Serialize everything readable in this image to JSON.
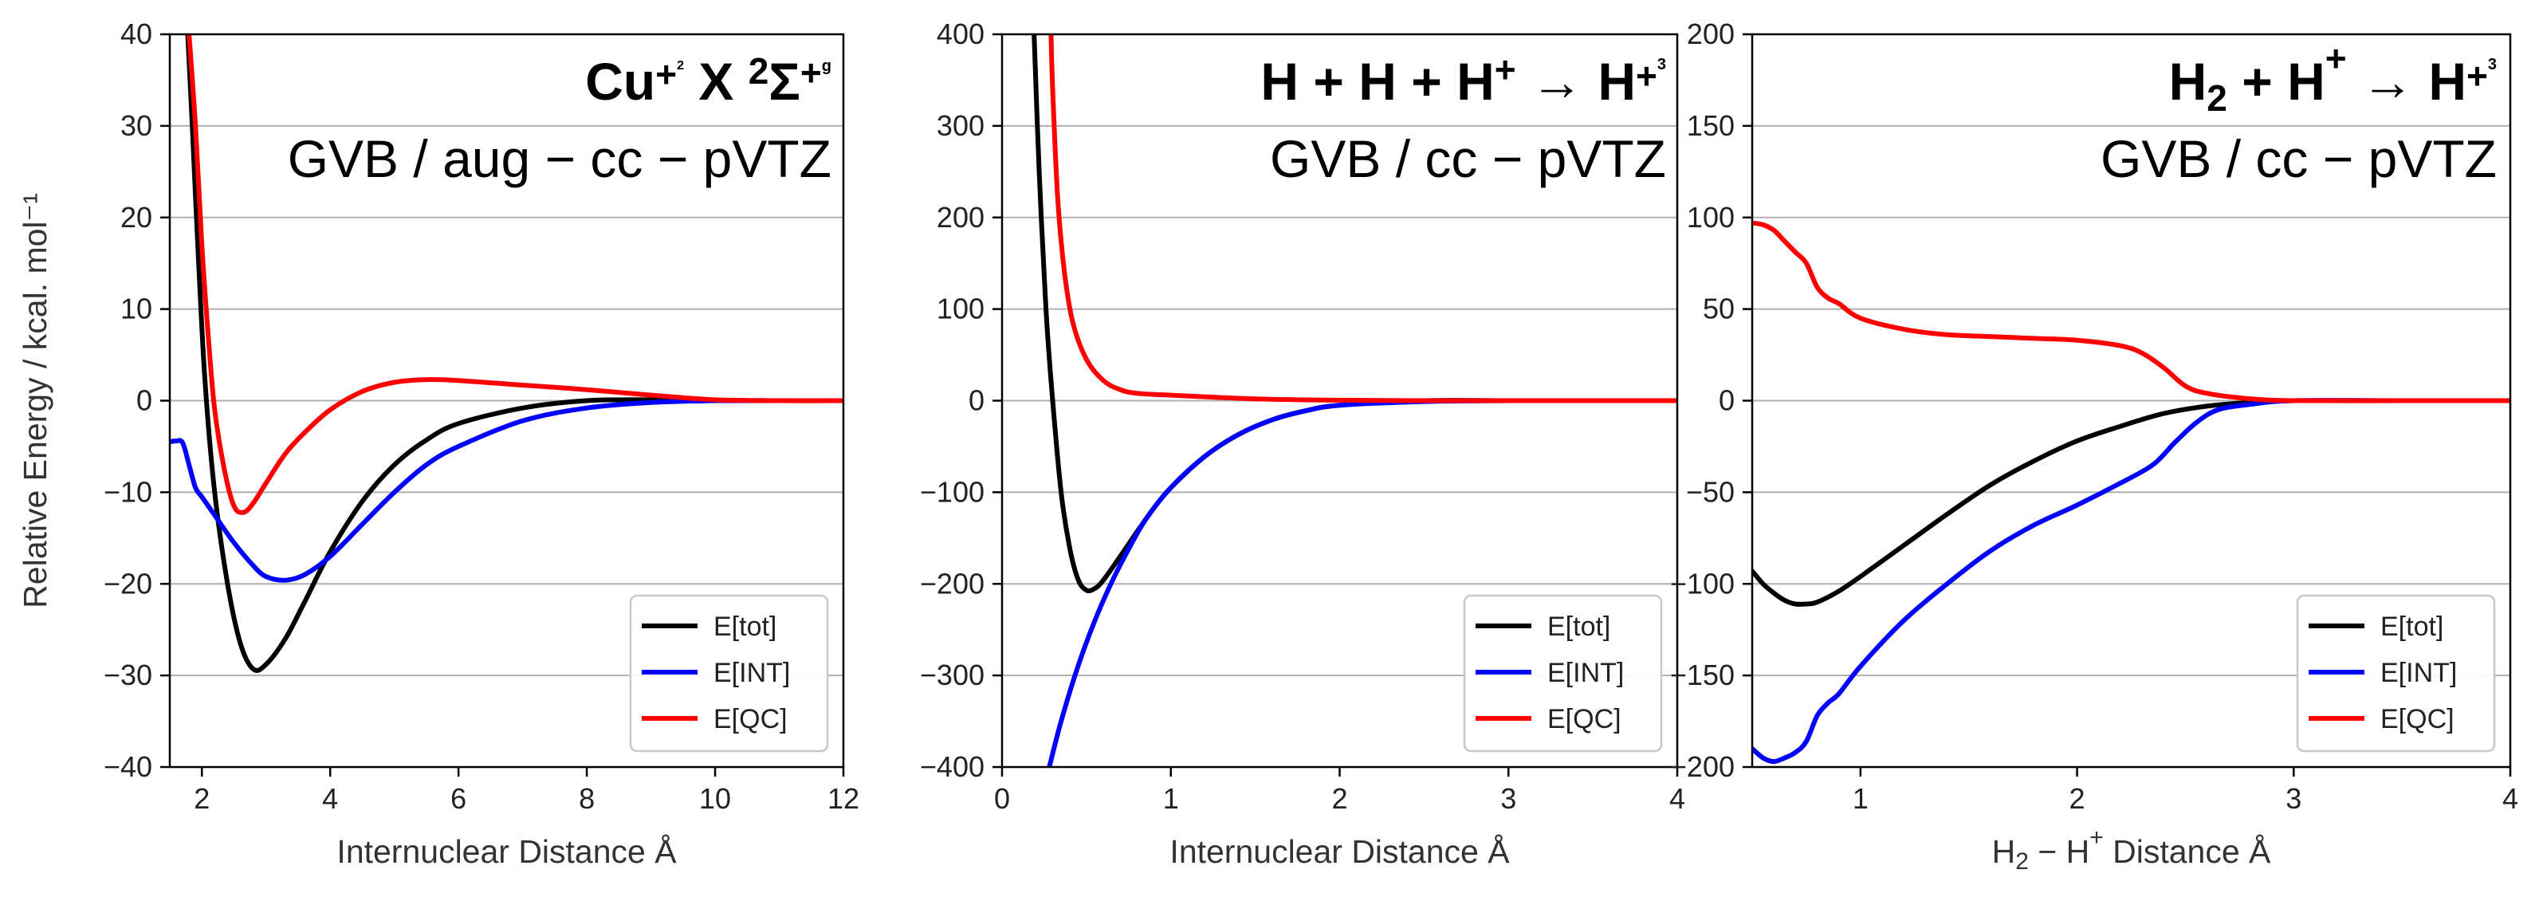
{
  "chart_data": [
    {
      "type": "line",
      "title": "Cu₂⁺ X ²Σg⁺",
      "subtitle": "GVB / aug − cc − pVTZ",
      "xlabel": "Internuclear Distance Å",
      "ylabel": "Relative Energy / kcal. mol⁻¹",
      "xlim": [
        1.5,
        12
      ],
      "ylim": [
        -40,
        40
      ],
      "xticks": [
        2,
        4,
        6,
        8,
        10,
        12
      ],
      "yticks": [
        -40,
        -30,
        -20,
        -10,
        0,
        10,
        20,
        30,
        40
      ],
      "grid": "horizontal",
      "legend": "lower-right",
      "series": [
        {
          "name": "E[tot]",
          "color": "#000000",
          "x": [
            1.78,
            1.85,
            1.95,
            2.05,
            2.2,
            2.4,
            2.6,
            2.8,
            3.0,
            3.3,
            3.6,
            4.0,
            4.5,
            5.0,
            5.5,
            6.0,
            7.0,
            8.0,
            9.0,
            10.0,
            11.0,
            12.0
          ],
          "y": [
            40,
            30,
            15,
            2,
            -10,
            -20,
            -26.5,
            -29.3,
            -28.8,
            -26,
            -22,
            -16.5,
            -11,
            -7,
            -4.3,
            -2.5,
            -0.8,
            0,
            0.1,
            0,
            0,
            0
          ]
        },
        {
          "name": "E[INT]",
          "color": "#0000ff",
          "x": [
            1.5,
            1.6,
            1.7,
            1.8,
            1.9,
            2.0,
            2.2,
            2.5,
            2.8,
            3.0,
            3.3,
            3.6,
            4.0,
            4.5,
            5.0,
            5.5,
            6.0,
            7.0,
            8.0,
            9.0,
            10.0,
            11.0,
            12.0
          ],
          "y": [
            -4.5,
            -4.4,
            -4.6,
            -7,
            -9.5,
            -10.5,
            -12.5,
            -15.5,
            -18,
            -19.2,
            -19.6,
            -19,
            -17,
            -13.5,
            -10,
            -7,
            -5,
            -2.2,
            -0.8,
            -0.2,
            0,
            0,
            0
          ]
        },
        {
          "name": "E[QC]",
          "color": "#ff0000",
          "x": [
            1.8,
            1.9,
            2.0,
            2.1,
            2.2,
            2.35,
            2.5,
            2.65,
            2.8,
            3.0,
            3.3,
            3.6,
            4.0,
            4.5,
            5.0,
            5.5,
            6.0,
            7.0,
            8.0,
            9.0,
            10.0,
            11.0,
            12.0
          ],
          "y": [
            40,
            30,
            17,
            7,
            -1,
            -7.5,
            -11.5,
            -12.2,
            -11.2,
            -9,
            -5.8,
            -3.5,
            -1,
            1,
            2,
            2.3,
            2.2,
            1.7,
            1.2,
            0.6,
            0.1,
            0,
            0
          ]
        }
      ]
    },
    {
      "type": "line",
      "title": "H + H + H⁺ → H₃⁺",
      "subtitle": "GVB / cc − pVTZ",
      "xlabel": "Internuclear Distance Å",
      "ylabel": "",
      "xlim": [
        0,
        4
      ],
      "ylim": [
        -400,
        400
      ],
      "xticks": [
        0,
        1,
        2,
        3,
        4
      ],
      "yticks": [
        -400,
        -300,
        -200,
        -100,
        0,
        100,
        200,
        300,
        400
      ],
      "grid": "horizontal",
      "legend": "lower-right",
      "series": [
        {
          "name": "E[tot]",
          "color": "#000000",
          "x": [
            0.19,
            0.22,
            0.26,
            0.3,
            0.35,
            0.4,
            0.45,
            0.5,
            0.55,
            0.6,
            0.7,
            0.8,
            0.9,
            1.0,
            1.2,
            1.4,
            1.6,
            1.8,
            2.0,
            2.5,
            3.0,
            3.5,
            4.0
          ],
          "y": [
            400,
            250,
            100,
            0,
            -100,
            -160,
            -195,
            -207,
            -205,
            -196,
            -170,
            -143,
            -117,
            -95,
            -61,
            -37,
            -21,
            -11,
            -5,
            0,
            0,
            0,
            0
          ]
        },
        {
          "name": "E[INT]",
          "color": "#0000ff",
          "x": [
            0.28,
            0.35,
            0.45,
            0.55,
            0.65,
            0.75,
            0.85,
            1.0,
            1.2,
            1.4,
            1.6,
            1.8,
            2.0,
            2.5,
            3.0,
            3.5,
            4.0
          ],
          "y": [
            -400,
            -350,
            -290,
            -240,
            -198,
            -162,
            -130,
            -95,
            -61,
            -37,
            -21,
            -11,
            -5,
            -1,
            0,
            0,
            0
          ]
        },
        {
          "name": "E[QC]",
          "color": "#ff0000",
          "x": [
            0.29,
            0.3,
            0.33,
            0.37,
            0.42,
            0.5,
            0.6,
            0.7,
            0.8,
            1.0,
            1.5,
            2.0,
            2.5,
            3.0,
            4.0
          ],
          "y": [
            400,
            340,
            220,
            140,
            85,
            45,
            22,
            12,
            8,
            6,
            2,
            0.5,
            0,
            0,
            0
          ]
        }
      ]
    },
    {
      "type": "line",
      "title": "H₂ + H⁺ → H₃⁺",
      "subtitle": "GVB / cc − pVTZ",
      "xlabel": "H₂ − H⁺ Distance Å",
      "ylabel": "",
      "xlim": [
        0.5,
        4
      ],
      "ylim": [
        -200,
        200
      ],
      "xticks": [
        1,
        2,
        3,
        4
      ],
      "yticks": [
        -200,
        -150,
        -100,
        -50,
        0,
        50,
        100,
        150,
        200
      ],
      "grid": "horizontal",
      "legend": "lower-right",
      "series": [
        {
          "name": "E[tot]",
          "color": "#000000",
          "x": [
            0.5,
            0.55,
            0.6,
            0.65,
            0.7,
            0.75,
            0.8,
            0.9,
            1.0,
            1.2,
            1.4,
            1.6,
            1.8,
            2.0,
            2.2,
            2.4,
            2.6,
            2.8,
            3.0,
            3.5,
            4.0
          ],
          "y": [
            -93,
            -100,
            -105,
            -109,
            -111,
            -111,
            -110,
            -104,
            -96,
            -79,
            -62,
            -46,
            -33,
            -22,
            -14,
            -7,
            -3,
            -1,
            0,
            0,
            0
          ]
        },
        {
          "name": "E[INT]",
          "color": "#0000ff",
          "x": [
            0.5,
            0.55,
            0.6,
            0.65,
            0.7,
            0.75,
            0.8,
            0.85,
            0.9,
            1.0,
            1.2,
            1.4,
            1.6,
            1.8,
            2.0,
            2.2,
            2.35,
            2.45,
            2.55,
            2.65,
            2.8,
            3.0,
            3.5,
            4.0
          ],
          "y": [
            -190,
            -195,
            -197,
            -195,
            -192,
            -186,
            -172,
            -165,
            -160,
            -145,
            -120,
            -100,
            -82,
            -68,
            -57,
            -45,
            -35,
            -23,
            -12,
            -5,
            -2,
            0,
            0,
            0
          ]
        },
        {
          "name": "E[QC]",
          "color": "#ff0000",
          "x": [
            0.5,
            0.55,
            0.6,
            0.65,
            0.7,
            0.75,
            0.8,
            0.85,
            0.9,
            1.0,
            1.2,
            1.4,
            1.6,
            1.8,
            2.0,
            2.2,
            2.3,
            2.4,
            2.5,
            2.6,
            2.8,
            3.0,
            3.5,
            4.0
          ],
          "y": [
            97,
            96,
            93,
            87,
            81,
            75,
            62,
            56,
            53,
            45,
            39,
            36,
            35,
            34,
            33,
            30,
            26,
            18,
            8,
            4,
            1,
            0,
            0,
            0
          ]
        }
      ]
    }
  ]
}
